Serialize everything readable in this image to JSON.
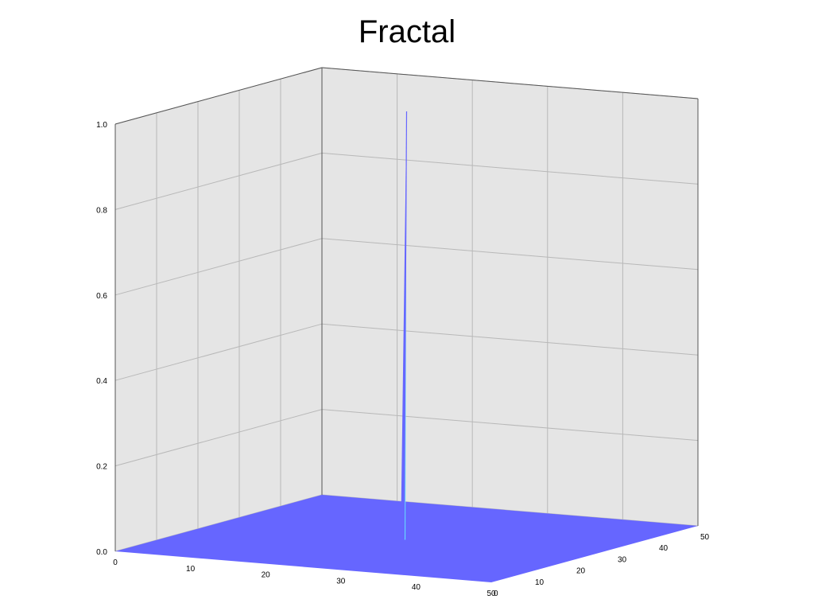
{
  "chart_data": {
    "type": "surface3d",
    "title": "Fractal",
    "z_ticks": [
      "0.0",
      "0.2",
      "0.4",
      "0.6",
      "0.8",
      "1.0"
    ],
    "z_range": [
      0,
      1
    ],
    "x_ticks": [
      "0",
      "10",
      "20",
      "30",
      "40",
      "50"
    ],
    "x_range": [
      0,
      50
    ],
    "y_ticks": [
      "0",
      "10",
      "20",
      "30",
      "40",
      "50"
    ],
    "y_range": [
      0,
      50
    ],
    "grid": true,
    "peak": {
      "x": 25,
      "y": 25,
      "z": 1.0
    },
    "base_z": 0.0,
    "colors": {
      "surface": "#6666ff",
      "peak_light": "#66e0ff",
      "wall": "#e5e5e5",
      "grid": "#b8b8b8",
      "axis": "#555555"
    }
  }
}
